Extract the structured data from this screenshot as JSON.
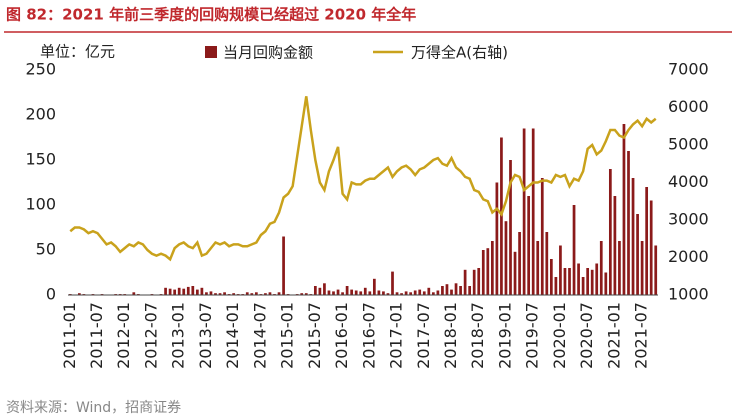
{
  "title": "图 82：2021 年前三季度的回购规模已经超过 2020 年全年",
  "source": "资料来源：Wind，招商证券",
  "chart_data": {
    "type": "bar-line",
    "unit_label": "单位：亿元",
    "categories": [
      "2011-01",
      null,
      null,
      null,
      null,
      null,
      "2011-07",
      null,
      null,
      null,
      null,
      null,
      "2012-01",
      null,
      null,
      null,
      null,
      null,
      "2012-07",
      null,
      null,
      null,
      null,
      null,
      "2013-01",
      null,
      null,
      null,
      null,
      null,
      "2013-07",
      null,
      null,
      null,
      null,
      null,
      "2014-01",
      null,
      null,
      null,
      null,
      null,
      "2014-07",
      null,
      null,
      null,
      null,
      null,
      "2015-01",
      null,
      null,
      null,
      null,
      null,
      "2015-07",
      null,
      null,
      null,
      null,
      null,
      "2016-01",
      null,
      null,
      null,
      null,
      null,
      "2016-07",
      null,
      null,
      null,
      null,
      null,
      "2017-01",
      null,
      null,
      null,
      null,
      null,
      "2017-07",
      null,
      null,
      null,
      null,
      null,
      "2018-01",
      null,
      null,
      null,
      null,
      null,
      "2018-07",
      null,
      null,
      null,
      null,
      null,
      "2019-01",
      null,
      null,
      null,
      null,
      null,
      "2019-07",
      null,
      null,
      null,
      null,
      null,
      "2020-01",
      null,
      null,
      null,
      null,
      null,
      "2020-07",
      null,
      null,
      null,
      null,
      null,
      "2021-01",
      null,
      null,
      null,
      null,
      null,
      "2021-07",
      null,
      null,
      null
    ],
    "series": [
      {
        "name": "当月回购金额",
        "color": "#8b1a1a",
        "kind": "bar",
        "values": [
          1,
          0,
          2,
          1,
          0,
          1,
          0,
          1,
          0,
          0,
          1,
          1,
          1,
          0,
          3,
          1,
          0,
          0,
          1,
          0,
          1,
          8,
          7,
          6,
          8,
          7,
          9,
          10,
          6,
          8,
          3,
          4,
          2,
          2,
          3,
          1,
          2,
          1,
          1,
          3,
          2,
          3,
          1,
          2,
          3,
          1,
          3,
          65,
          1,
          0,
          1,
          2,
          2,
          1,
          10,
          8,
          13,
          5,
          4,
          6,
          3,
          10,
          6,
          5,
          4,
          8,
          4,
          18,
          5,
          4,
          2,
          26,
          3,
          2,
          4,
          3,
          5,
          6,
          4,
          8,
          3,
          5,
          10,
          12,
          6,
          13,
          10,
          28,
          10,
          28,
          30,
          50,
          52,
          60,
          125,
          175,
          82,
          150,
          48,
          70,
          185,
          110,
          185,
          60,
          130,
          70,
          40,
          20,
          55,
          30,
          30,
          100,
          35,
          20,
          30,
          28,
          35,
          60,
          25,
          140,
          110,
          60,
          190,
          160,
          130,
          90,
          60,
          120,
          105,
          55
        ]
      },
      {
        "name": "万得全A(右轴)",
        "color": "#c9a21c",
        "kind": "line",
        "axis": "y2",
        "values": [
          2700,
          2800,
          2800,
          2750,
          2650,
          2700,
          2650,
          2500,
          2350,
          2400,
          2300,
          2150,
          2250,
          2350,
          2300,
          2400,
          2350,
          2200,
          2100,
          2050,
          2100,
          2050,
          1950,
          2250,
          2350,
          2400,
          2300,
          2250,
          2400,
          2050,
          2100,
          2250,
          2400,
          2350,
          2400,
          2300,
          2350,
          2350,
          2300,
          2300,
          2350,
          2400,
          2600,
          2700,
          2900,
          2950,
          3200,
          3600,
          3700,
          3900,
          4700,
          5500,
          6300,
          5400,
          4600,
          4000,
          3800,
          4300,
          4600,
          4950,
          3700,
          3550,
          4000,
          3950,
          3950,
          4050,
          4100,
          4100,
          4200,
          4300,
          4400,
          4150,
          4300,
          4400,
          4450,
          4350,
          4200,
          4350,
          4400,
          4500,
          4600,
          4650,
          4500,
          4450,
          4650,
          4400,
          4300,
          4150,
          4100,
          3800,
          3750,
          3550,
          3500,
          3200,
          3300,
          3150,
          3500,
          4000,
          4200,
          4150,
          3800,
          3900,
          4000,
          4000,
          4050,
          4050,
          4000,
          4200,
          4150,
          4200,
          3900,
          4100,
          4050,
          4300,
          4900,
          5000,
          4750,
          4850,
          5100,
          5400,
          5400,
          5250,
          5200,
          5400,
          5550,
          5650,
          5500,
          5700,
          5600,
          5700
        ]
      }
    ],
    "ylim": [
      0,
      250
    ],
    "yticks": [
      0,
      50,
      100,
      150,
      200,
      250
    ],
    "y2lim": [
      1000,
      7000
    ],
    "y2ticks": [
      1000,
      2000,
      3000,
      4000,
      5000,
      6000,
      7000
    ]
  }
}
